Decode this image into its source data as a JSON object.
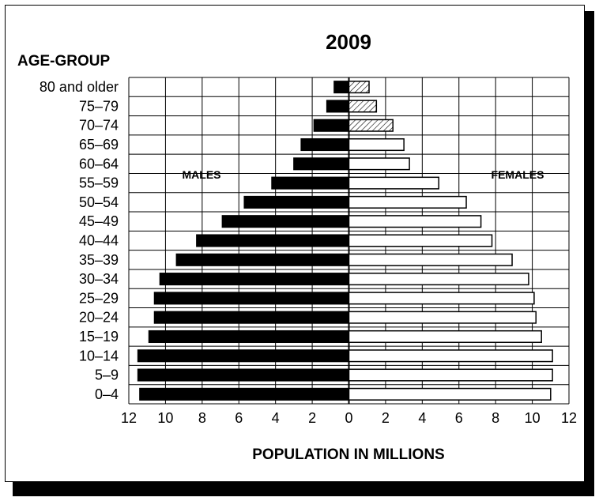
{
  "chart_data": {
    "type": "bar",
    "title": "2009",
    "ylabel": "AGE-GROUP",
    "xlabel": "POPULATION IN MILLIONS",
    "categories": [
      "80 and older",
      "75–79",
      "70–74",
      "65–69",
      "60–64",
      "55–59",
      "50–54",
      "45–49",
      "40–44",
      "35–39",
      "30–34",
      "25–29",
      "20–24",
      "15–19",
      "10–14",
      "5–9",
      "0–4"
    ],
    "xlim": [
      -12,
      12
    ],
    "x_ticks": [
      "12",
      "10",
      "8",
      "6",
      "4",
      "2",
      "0",
      "2",
      "4",
      "6",
      "8",
      "10",
      "12"
    ],
    "grid": true,
    "series": [
      {
        "name": "MALES",
        "fill": "#000000",
        "values": [
          0.8,
          1.2,
          1.9,
          2.6,
          3.0,
          4.2,
          5.7,
          6.9,
          8.3,
          9.4,
          10.3,
          10.6,
          10.6,
          10.9,
          11.5,
          11.5,
          11.4
        ]
      },
      {
        "name": "FEMALES",
        "fill": "#ffffff",
        "hatched_groups": [
          "80 and older",
          "75–79",
          "70–74"
        ],
        "values": [
          1.1,
          1.5,
          2.4,
          3.0,
          3.3,
          4.9,
          6.4,
          7.2,
          7.8,
          8.9,
          9.8,
          10.1,
          10.2,
          10.5,
          11.1,
          11.1,
          11.0
        ]
      }
    ]
  }
}
